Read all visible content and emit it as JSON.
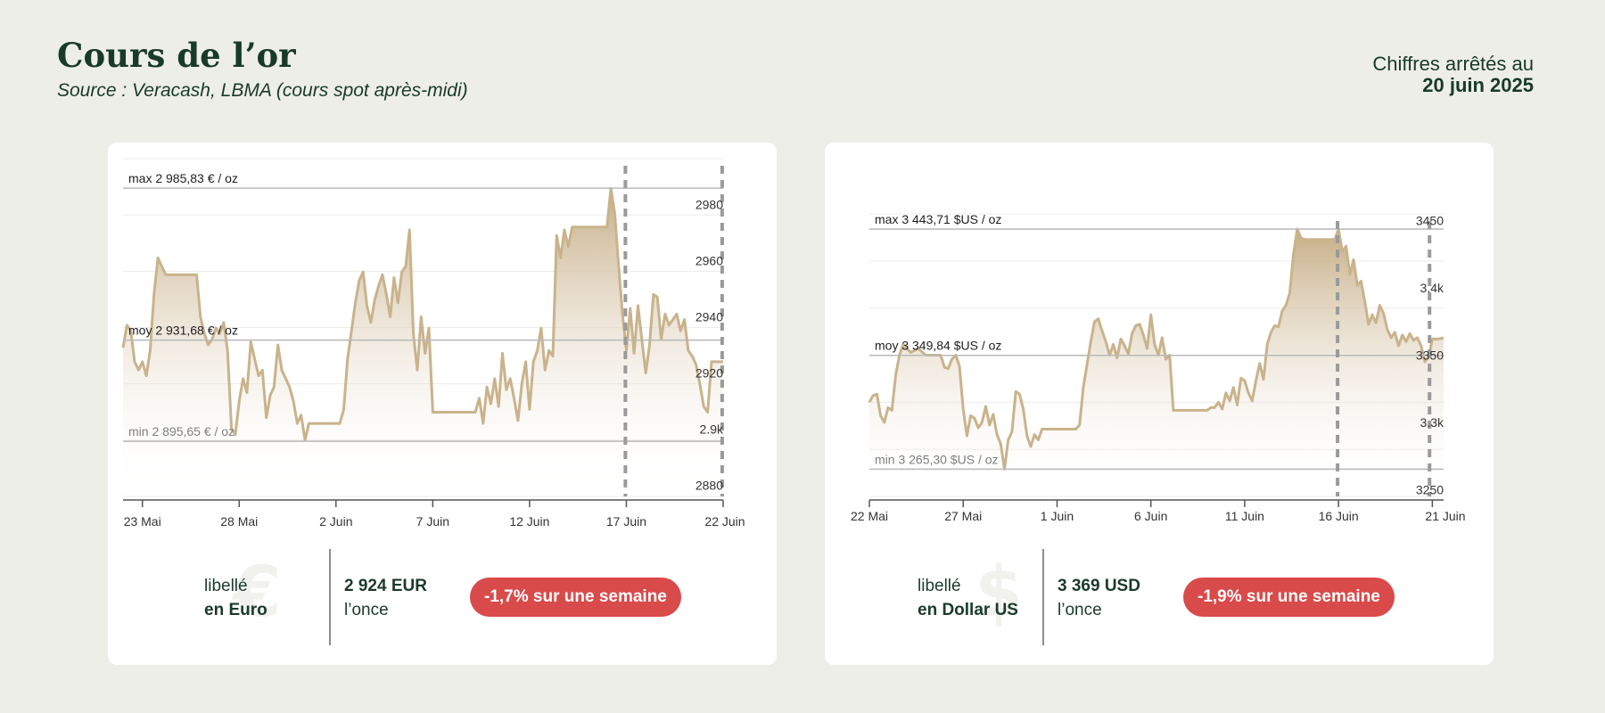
{
  "header": {
    "title": "Cours de l’or",
    "subtitle": "Source : Veracash, LBMA (cours spot après-midi)",
    "asof_label": "Chiffres arrêtés au",
    "asof_date": "20 juin 2025"
  },
  "colors": {
    "accent": "#d94a4a",
    "line": "#c9b38c",
    "text": "#183a2a"
  },
  "cards": {
    "eur": {
      "lib1": "libellé",
      "lib2": "en Euro",
      "symbol": "€",
      "price": "2 924 EUR",
      "unit": "l’once",
      "badge": "-1,7% sur une semaine"
    },
    "usd": {
      "lib1": "libellé",
      "lib2": "en Dollar US",
      "symbol": "$",
      "price": "3 369 USD",
      "unit": "l’once",
      "badge": "-1,9% sur une semaine"
    }
  },
  "chart_data": [
    {
      "type": "area",
      "currency": "EUR",
      "x_start": "2025-05-22",
      "ylim": [
        2876,
        2997
      ],
      "yticks": [
        {
          "v": 2880,
          "t": "2880"
        },
        {
          "v": 2900,
          "t": "2.9k"
        },
        {
          "v": 2920,
          "t": "2920"
        },
        {
          "v": 2940,
          "t": "2940"
        },
        {
          "v": 2960,
          "t": "2960"
        },
        {
          "v": 2980,
          "t": "2980"
        }
      ],
      "xticks": [
        {
          "d": 1,
          "t": "23 Mai"
        },
        {
          "d": 6,
          "t": "28 Mai"
        },
        {
          "d": 11,
          "t": "2 Juin"
        },
        {
          "d": 16,
          "t": "7 Juin"
        },
        {
          "d": 21,
          "t": "12 Juin"
        },
        {
          "d": 26,
          "t": "17 Juin"
        },
        {
          "d": 31,
          "t": "22 Juin"
        }
      ],
      "vlines": [
        25.95,
        30.95
      ],
      "refs": [
        {
          "label": "max 2 985,83 € / oz",
          "value": 2985.83,
          "style": "dark"
        },
        {
          "label": "moy 2 931,68 € / oz",
          "value": 2931.68,
          "style": "dark"
        },
        {
          "label": "min 2 895,65 € / oz",
          "value": 2895.65,
          "style": "light"
        }
      ],
      "points": [
        [
          0,
          2929
        ],
        [
          0.2,
          2937
        ],
        [
          0.4,
          2935
        ],
        [
          0.6,
          2924
        ],
        [
          0.8,
          2921
        ],
        [
          1.0,
          2924
        ],
        [
          1.2,
          2919
        ],
        [
          1.4,
          2928
        ],
        [
          1.6,
          2948
        ],
        [
          1.8,
          2961
        ],
        [
          2.0,
          2958
        ],
        [
          2.2,
          2955
        ],
        [
          3.0,
          2955
        ],
        [
          3.8,
          2955
        ],
        [
          4.0,
          2940
        ],
        [
          4.2,
          2934
        ],
        [
          4.4,
          2930
        ],
        [
          4.6,
          2932
        ],
        [
          4.8,
          2936
        ],
        [
          5.0,
          2934
        ],
        [
          5.2,
          2938
        ],
        [
          5.4,
          2928
        ],
        [
          5.6,
          2900
        ],
        [
          5.8,
          2898
        ],
        [
          6.0,
          2910
        ],
        [
          6.2,
          2918
        ],
        [
          6.4,
          2913
        ],
        [
          6.6,
          2931
        ],
        [
          6.8,
          2925
        ],
        [
          7.0,
          2919
        ],
        [
          7.2,
          2921
        ],
        [
          7.4,
          2904
        ],
        [
          7.6,
          2912
        ],
        [
          7.8,
          2915
        ],
        [
          8.0,
          2930
        ],
        [
          8.2,
          2921
        ],
        [
          8.4,
          2918
        ],
        [
          8.6,
          2915
        ],
        [
          8.8,
          2910
        ],
        [
          9.0,
          2902
        ],
        [
          9.2,
          2905
        ],
        [
          9.4,
          2896
        ],
        [
          9.6,
          2902
        ],
        [
          10.0,
          2902
        ],
        [
          11.0,
          2902
        ],
        [
          11.2,
          2902
        ],
        [
          11.4,
          2907
        ],
        [
          11.6,
          2925
        ],
        [
          11.8,
          2935
        ],
        [
          12.0,
          2945
        ],
        [
          12.2,
          2953
        ],
        [
          12.4,
          2956
        ],
        [
          12.6,
          2944
        ],
        [
          12.8,
          2938
        ],
        [
          13.0,
          2946
        ],
        [
          13.2,
          2951
        ],
        [
          13.4,
          2955
        ],
        [
          13.6,
          2948
        ],
        [
          13.8,
          2940
        ],
        [
          14.0,
          2954
        ],
        [
          14.2,
          2945
        ],
        [
          14.4,
          2956
        ],
        [
          14.6,
          2958
        ],
        [
          14.8,
          2971
        ],
        [
          15.0,
          2934
        ],
        [
          15.2,
          2921
        ],
        [
          15.4,
          2940
        ],
        [
          15.6,
          2927
        ],
        [
          15.8,
          2936
        ],
        [
          16.0,
          2906
        ],
        [
          17.0,
          2906
        ],
        [
          18.0,
          2906
        ],
        [
          18.2,
          2906
        ],
        [
          18.4,
          2911
        ],
        [
          18.6,
          2902
        ],
        [
          18.8,
          2915
        ],
        [
          19.0,
          2909
        ],
        [
          19.2,
          2918
        ],
        [
          19.4,
          2908
        ],
        [
          19.6,
          2927
        ],
        [
          19.8,
          2914
        ],
        [
          20.0,
          2918
        ],
        [
          20.2,
          2911
        ],
        [
          20.4,
          2903
        ],
        [
          20.6,
          2916
        ],
        [
          20.8,
          2924
        ],
        [
          21.0,
          2907
        ],
        [
          21.2,
          2924
        ],
        [
          21.4,
          2928
        ],
        [
          21.6,
          2936
        ],
        [
          21.8,
          2921
        ],
        [
          22.0,
          2928
        ],
        [
          22.2,
          2926
        ],
        [
          22.4,
          2969
        ],
        [
          22.6,
          2961
        ],
        [
          22.8,
          2971
        ],
        [
          23.0,
          2965
        ],
        [
          23.2,
          2972
        ],
        [
          24.0,
          2972
        ],
        [
          24.8,
          2972
        ],
        [
          25.0,
          2972
        ],
        [
          25.2,
          2985.83
        ],
        [
          25.4,
          2977
        ],
        [
          25.6,
          2958
        ],
        [
          25.8,
          2941
        ],
        [
          26.0,
          2928
        ],
        [
          26.2,
          2943
        ],
        [
          26.4,
          2927
        ],
        [
          26.6,
          2944
        ],
        [
          26.8,
          2932
        ],
        [
          27.0,
          2920
        ],
        [
          27.2,
          2930
        ],
        [
          27.4,
          2948
        ],
        [
          27.6,
          2947
        ],
        [
          27.8,
          2932
        ],
        [
          28.0,
          2941
        ],
        [
          28.2,
          2937
        ],
        [
          28.4,
          2939
        ],
        [
          28.6,
          2941
        ],
        [
          28.8,
          2935
        ],
        [
          29.0,
          2939
        ],
        [
          29.2,
          2928
        ],
        [
          29.4,
          2926
        ],
        [
          29.6,
          2923
        ],
        [
          29.8,
          2916
        ],
        [
          30.0,
          2908
        ],
        [
          30.2,
          2906
        ],
        [
          30.4,
          2924
        ],
        [
          30.6,
          2924
        ],
        [
          31.0,
          2924
        ]
      ]
    },
    {
      "type": "area",
      "currency": "USD",
      "x_start": "2025-05-22",
      "ylim": [
        3245,
        3455
      ],
      "yticks": [
        {
          "v": 3250,
          "t": "3250"
        },
        {
          "v": 3300,
          "t": "3.3k"
        },
        {
          "v": 3350,
          "t": "3350"
        },
        {
          "v": 3400,
          "t": "3.4k"
        },
        {
          "v": 3450,
          "t": "3450"
        }
      ],
      "xticks": [
        {
          "d": 0,
          "t": "22 Mai"
        },
        {
          "d": 5,
          "t": "27 Mai"
        },
        {
          "d": 10,
          "t": "1 Juin"
        },
        {
          "d": 15,
          "t": "6 Juin"
        },
        {
          "d": 20,
          "t": "11 Juin"
        },
        {
          "d": 25,
          "t": "16 Juin"
        },
        {
          "d": 30,
          "t": "21 Juin"
        }
      ],
      "vlines": [
        24.95,
        29.85
      ],
      "refs": [
        {
          "label": "max 3 443,71 $US / oz",
          "value": 3443.71,
          "style": "dark"
        },
        {
          "label": "moy 3 349,84 $US / oz",
          "value": 3349.84,
          "style": "dark"
        },
        {
          "label": "min 3 265,30 $US / oz",
          "value": 3265.3,
          "style": "light"
        }
      ],
      "points": [
        [
          0,
          3315
        ],
        [
          0.2,
          3320
        ],
        [
          0.4,
          3321
        ],
        [
          0.6,
          3305
        ],
        [
          0.8,
          3300
        ],
        [
          1.0,
          3311
        ],
        [
          1.2,
          3309
        ],
        [
          1.4,
          3335
        ],
        [
          1.6,
          3350
        ],
        [
          1.8,
          3358
        ],
        [
          2.0,
          3355
        ],
        [
          2.2,
          3352
        ],
        [
          2.6,
          3355
        ],
        [
          3.0,
          3350
        ],
        [
          3.4,
          3350
        ],
        [
          3.8,
          3350
        ],
        [
          4.0,
          3341
        ],
        [
          4.2,
          3340
        ],
        [
          4.4,
          3347
        ],
        [
          4.6,
          3350
        ],
        [
          4.8,
          3342
        ],
        [
          5.0,
          3310
        ],
        [
          5.2,
          3290
        ],
        [
          5.4,
          3305
        ],
        [
          5.6,
          3303
        ],
        [
          5.8,
          3296
        ],
        [
          6.0,
          3300
        ],
        [
          6.2,
          3312
        ],
        [
          6.4,
          3298
        ],
        [
          6.6,
          3306
        ],
        [
          6.8,
          3291
        ],
        [
          7.0,
          3284
        ],
        [
          7.2,
          3265.3
        ],
        [
          7.4,
          3287
        ],
        [
          7.6,
          3293
        ],
        [
          7.8,
          3323
        ],
        [
          8.0,
          3321
        ],
        [
          8.2,
          3310
        ],
        [
          8.4,
          3290
        ],
        [
          8.6,
          3282
        ],
        [
          8.8,
          3291
        ],
        [
          9.0,
          3287
        ],
        [
          9.2,
          3295
        ],
        [
          9.6,
          3295
        ],
        [
          10.0,
          3295
        ],
        [
          11.0,
          3295
        ],
        [
          11.2,
          3298
        ],
        [
          11.4,
          3326
        ],
        [
          11.6,
          3343
        ],
        [
          11.8,
          3360
        ],
        [
          12.0,
          3375
        ],
        [
          12.2,
          3377
        ],
        [
          12.4,
          3368
        ],
        [
          12.6,
          3360
        ],
        [
          12.8,
          3350
        ],
        [
          13.0,
          3358
        ],
        [
          13.2,
          3348
        ],
        [
          13.4,
          3362
        ],
        [
          13.6,
          3357
        ],
        [
          13.8,
          3351
        ],
        [
          14.0,
          3366
        ],
        [
          14.2,
          3372
        ],
        [
          14.4,
          3373
        ],
        [
          14.6,
          3365
        ],
        [
          14.8,
          3355
        ],
        [
          15.0,
          3380
        ],
        [
          15.2,
          3358
        ],
        [
          15.4,
          3350
        ],
        [
          15.6,
          3363
        ],
        [
          15.8,
          3347
        ],
        [
          16.0,
          3350
        ],
        [
          16.2,
          3309
        ],
        [
          16.4,
          3309
        ],
        [
          17.0,
          3309
        ],
        [
          18.0,
          3309
        ],
        [
          18.2,
          3311
        ],
        [
          18.4,
          3311
        ],
        [
          18.6,
          3315
        ],
        [
          18.8,
          3310
        ],
        [
          19.0,
          3322
        ],
        [
          19.2,
          3316
        ],
        [
          19.4,
          3326
        ],
        [
          19.6,
          3313
        ],
        [
          19.8,
          3333
        ],
        [
          20.0,
          3331
        ],
        [
          20.2,
          3322
        ],
        [
          20.4,
          3316
        ],
        [
          20.6,
          3331
        ],
        [
          20.8,
          3344
        ],
        [
          21.0,
          3332
        ],
        [
          21.2,
          3358
        ],
        [
          21.4,
          3367
        ],
        [
          21.6,
          3372
        ],
        [
          21.8,
          3371
        ],
        [
          22.0,
          3383
        ],
        [
          22.2,
          3387
        ],
        [
          22.4,
          3396
        ],
        [
          22.6,
          3425
        ],
        [
          22.8,
          3443.71
        ],
        [
          23.0,
          3437
        ],
        [
          23.2,
          3436
        ],
        [
          23.6,
          3436
        ],
        [
          24.0,
          3436
        ],
        [
          24.4,
          3436
        ],
        [
          24.8,
          3436
        ],
        [
          25.0,
          3443.71
        ],
        [
          25.2,
          3427
        ],
        [
          25.4,
          3431
        ],
        [
          25.6,
          3410
        ],
        [
          25.8,
          3421
        ],
        [
          26.0,
          3402
        ],
        [
          26.2,
          3405
        ],
        [
          26.4,
          3390
        ],
        [
          26.6,
          3373
        ],
        [
          26.8,
          3380
        ],
        [
          27.0,
          3374
        ],
        [
          27.2,
          3387
        ],
        [
          27.4,
          3381
        ],
        [
          27.6,
          3369
        ],
        [
          27.8,
          3363
        ],
        [
          28.0,
          3367
        ],
        [
          28.2,
          3357
        ],
        [
          28.4,
          3365
        ],
        [
          28.6,
          3360
        ],
        [
          28.8,
          3366
        ],
        [
          29.0,
          3361
        ],
        [
          29.2,
          3363
        ],
        [
          29.4,
          3357
        ],
        [
          29.6,
          3345
        ],
        [
          29.8,
          3349
        ],
        [
          30.0,
          3362
        ],
        [
          30.3,
          3362
        ],
        [
          30.6,
          3363
        ]
      ]
    }
  ]
}
